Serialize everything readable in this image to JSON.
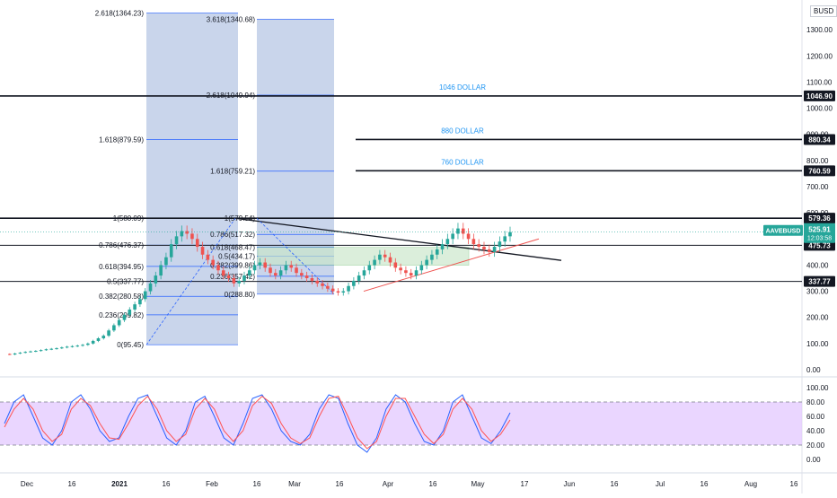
{
  "currency_label": "BUSD",
  "symbol_tag": "AAVEBUSD",
  "price_badges": [
    {
      "value": "1046.90",
      "price": 1046.9,
      "color": "#131722",
      "fg": "#ffffff"
    },
    {
      "value": "880.34",
      "price": 880.34,
      "color": "#131722",
      "fg": "#ffffff"
    },
    {
      "value": "760.59",
      "price": 760.59,
      "color": "#131722",
      "fg": "#ffffff"
    },
    {
      "value": "579.36",
      "price": 579.36,
      "color": "#131722",
      "fg": "#ffffff"
    },
    {
      "value": "475.73",
      "price": 475.73,
      "color": "#131722",
      "fg": "#ffffff"
    },
    {
      "value": "337.77",
      "price": 337.77,
      "color": "#131722",
      "fg": "#ffffff"
    }
  ],
  "last_price": {
    "value": "525.91",
    "countdown": "12:03:58",
    "price": 525.91,
    "color": "#26a69a"
  },
  "chart_data": [
    {
      "type": "line",
      "subtype": "candlestick",
      "series_name": "",
      "y_axis_ticks": [
        "0.00",
        "100.00",
        "200.00",
        "300.00",
        "400.00",
        "500.00",
        "600.00",
        "700.00",
        "800.00",
        "900.00",
        "1000.00",
        "1100.00",
        "1200.00",
        "1300.00"
      ],
      "ylim": [
        0,
        1400
      ],
      "x_ticks": [
        "Dec",
        "16",
        "2021",
        "16",
        "Feb",
        "16",
        "Mar",
        "16",
        "Apr",
        "16",
        "May",
        "17",
        "Jun",
        "16",
        "Jul",
        "16",
        "Aug",
        "16"
      ],
      "close_path": [
        60,
        58,
        62,
        65,
        68,
        70,
        72,
        75,
        78,
        80,
        82,
        85,
        88,
        90,
        92,
        95,
        100,
        110,
        120,
        130,
        150,
        170,
        190,
        210,
        230,
        250,
        270,
        300,
        330,
        360,
        400,
        430,
        480,
        510,
        530,
        520,
        500,
        470,
        440,
        420,
        400,
        380,
        360,
        350,
        330,
        340,
        360,
        380,
        400,
        410,
        390,
        370,
        360,
        380,
        400,
        390,
        370,
        360,
        350,
        340,
        330,
        320,
        310,
        300,
        295,
        300,
        320,
        340,
        360,
        380,
        400,
        420,
        440,
        430,
        410,
        390,
        380,
        370,
        360,
        380,
        400,
        420,
        440,
        460,
        480,
        500,
        520,
        540,
        520,
        500,
        480,
        470,
        460,
        450,
        470,
        490,
        510,
        526
      ],
      "levels": [
        {
          "label": "1046 DOLLAR",
          "price": 1046.9
        },
        {
          "label": "880 DOLLAR",
          "price": 880.34
        },
        {
          "label": "760 DOLLAR",
          "price": 760.59
        },
        {
          "label": "",
          "price": 579.36
        },
        {
          "label": "",
          "price": 475.73
        },
        {
          "label": "",
          "price": 337.77
        }
      ],
      "fib_left": [
        {
          "label": "2.618(1364.23)",
          "price": 1364.23
        },
        {
          "label": "1.618(879.59)",
          "price": 879.59
        },
        {
          "label": "1(580.09)",
          "price": 580.09
        },
        {
          "label": "0.786(476.37)",
          "price": 476.37
        },
        {
          "label": "0.618(394.95)",
          "price": 394.95
        },
        {
          "label": "0.5(337.77)",
          "price": 337.77
        },
        {
          "label": "0.382(280.58)",
          "price": 280.58
        },
        {
          "label": "0.236(209.82)",
          "price": 209.82
        },
        {
          "label": "0(95.45)",
          "price": 95.45
        }
      ],
      "fib_right": [
        {
          "label": "3.618(1340.68)",
          "price": 1340.68
        },
        {
          "label": "2.618(1049.94)",
          "price": 1049.94
        },
        {
          "label": "1.618(759.21)",
          "price": 759.21
        },
        {
          "label": "1(579.54)",
          "price": 579.54
        },
        {
          "label": "0.786(517.32)",
          "price": 517.32
        },
        {
          "label": "0.618(468.47)",
          "price": 468.47
        },
        {
          "label": "0.5(434.17)",
          "price": 434.17
        },
        {
          "label": "0.382(399.86)",
          "price": 399.86
        },
        {
          "label": "0.236(357.42)",
          "price": 357.42
        },
        {
          "label": "0(288.80)",
          "price": 288.8
        }
      ]
    },
    {
      "type": "line",
      "subtype": "stochastic_rsi",
      "y_axis_ticks": [
        "0.00",
        "20.00",
        "40.00",
        "60.00",
        "80.00",
        "100.00"
      ],
      "ylim": [
        0,
        100
      ],
      "band": [
        20,
        80
      ],
      "series": [
        {
          "name": "",
          "color": "#2962ff",
          "values": [
            50,
            80,
            90,
            60,
            30,
            20,
            40,
            80,
            90,
            70,
            40,
            25,
            30,
            60,
            85,
            90,
            60,
            30,
            20,
            40,
            80,
            88,
            60,
            30,
            20,
            50,
            85,
            90,
            70,
            40,
            25,
            20,
            35,
            70,
            90,
            85,
            50,
            20,
            10,
            30,
            70,
            90,
            80,
            50,
            25,
            20,
            40,
            80,
            90,
            60,
            30,
            22,
            40,
            65
          ]
        },
        {
          "name": "",
          "color": "#ff5252",
          "values": [
            45,
            70,
            85,
            70,
            40,
            25,
            35,
            70,
            85,
            75,
            50,
            30,
            28,
            50,
            75,
            88,
            70,
            40,
            25,
            35,
            70,
            85,
            70,
            40,
            25,
            40,
            75,
            88,
            78,
            50,
            30,
            22,
            30,
            60,
            85,
            88,
            60,
            30,
            15,
            25,
            60,
            85,
            85,
            60,
            35,
            22,
            35,
            70,
            85,
            70,
            40,
            25,
            35,
            55
          ]
        }
      ]
    }
  ]
}
